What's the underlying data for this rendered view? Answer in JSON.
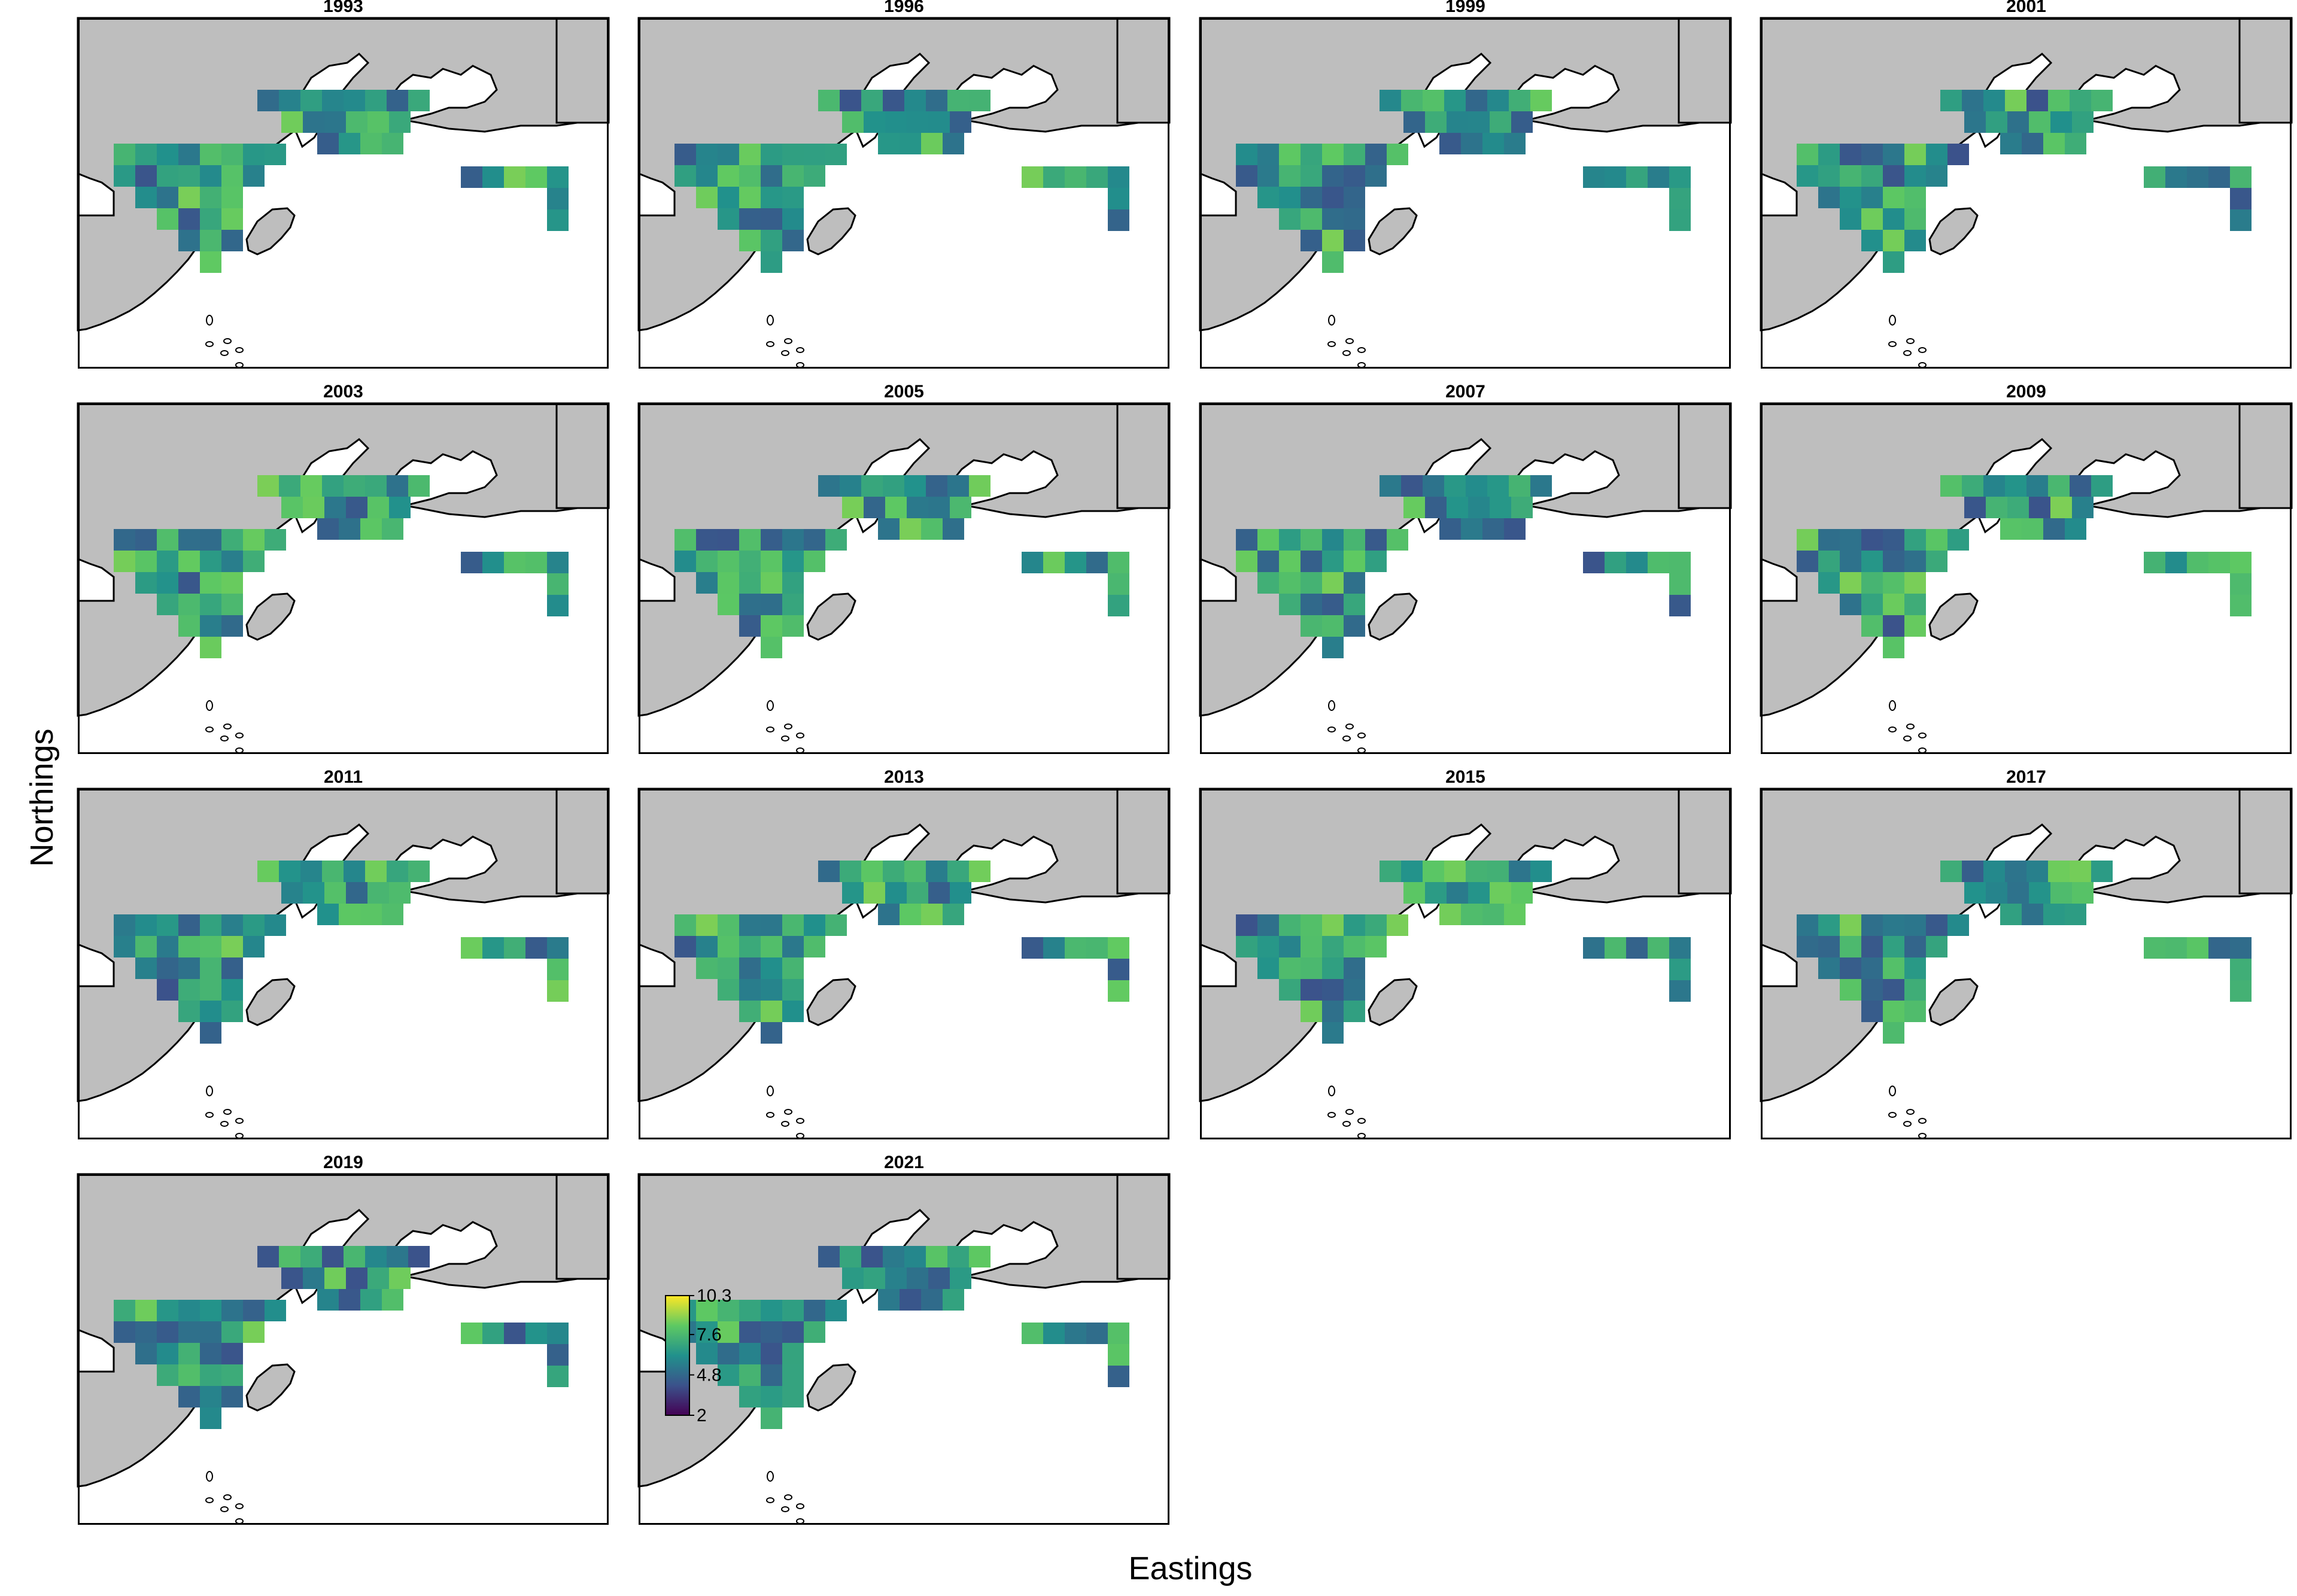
{
  "figure": {
    "xlabel": "Eastings",
    "ylabel": "Northings"
  },
  "panels": [
    {
      "year": "1993"
    },
    {
      "year": "1996"
    },
    {
      "year": "1999"
    },
    {
      "year": "2001"
    },
    {
      "year": "2003"
    },
    {
      "year": "2005"
    },
    {
      "year": "2007"
    },
    {
      "year": "2009"
    },
    {
      "year": "2011"
    },
    {
      "year": "2013"
    },
    {
      "year": "2015"
    },
    {
      "year": "2017"
    },
    {
      "year": "2019"
    },
    {
      "year": "2021"
    }
  ],
  "legend": {
    "tick_labels": [
      "10.3",
      "7.6",
      "4.8",
      "2"
    ],
    "min": 2,
    "max": 10.3,
    "colors": [
      "#440154",
      "#3b528b",
      "#21918c",
      "#5ec962",
      "#fde725"
    ]
  },
  "colors": {
    "land": "#bebebe",
    "ocean": "#ffffff",
    "outline": "#000000"
  }
}
